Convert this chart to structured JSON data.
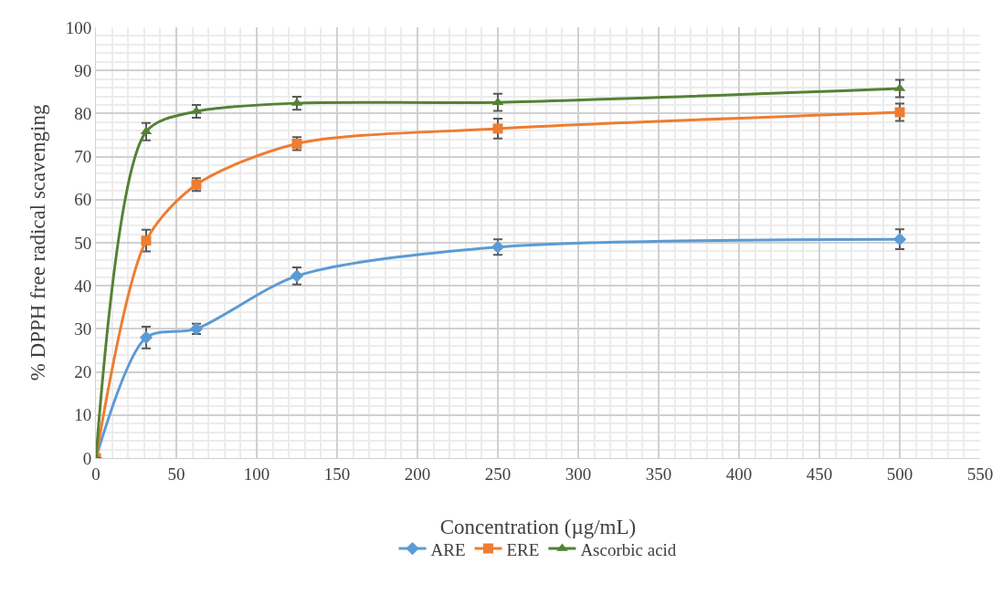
{
  "chart_data": {
    "type": "line",
    "xlabel": "Concentration (µg/mL)",
    "ylabel": "% DPPH free radical scavenging",
    "x": [
      0,
      31.25,
      62.5,
      125,
      250,
      500
    ],
    "series": [
      {
        "name": "ARE",
        "color": "#5b9bd5",
        "marker": "diamond",
        "values": [
          0,
          28,
          30,
          42.3,
          49,
          50.8
        ],
        "errors": [
          0,
          2.5,
          1.2,
          2,
          1.8,
          2.3
        ]
      },
      {
        "name": "ERE",
        "color": "#ed7d31",
        "marker": "square",
        "values": [
          0,
          50.5,
          63.5,
          73,
          76.5,
          80.3
        ],
        "errors": [
          0,
          2.5,
          1.5,
          1.5,
          2.3,
          2
        ]
      },
      {
        "name": "Ascorbic acid",
        "color": "#548235",
        "marker": "triangle",
        "values": [
          0,
          75.8,
          80.5,
          82.4,
          82.6,
          85.8
        ],
        "errors": [
          0,
          2,
          1.5,
          1.5,
          2,
          2
        ]
      }
    ],
    "xlim": [
      0,
      550
    ],
    "xticks": [
      0,
      50,
      100,
      150,
      200,
      250,
      300,
      350,
      400,
      450,
      500,
      550
    ],
    "ylim": [
      0,
      100
    ],
    "yticks": [
      0,
      10,
      20,
      30,
      40,
      50,
      60,
      70,
      80,
      90,
      100
    ],
    "grid": true,
    "legend": "bottom",
    "line_style": "solid"
  }
}
